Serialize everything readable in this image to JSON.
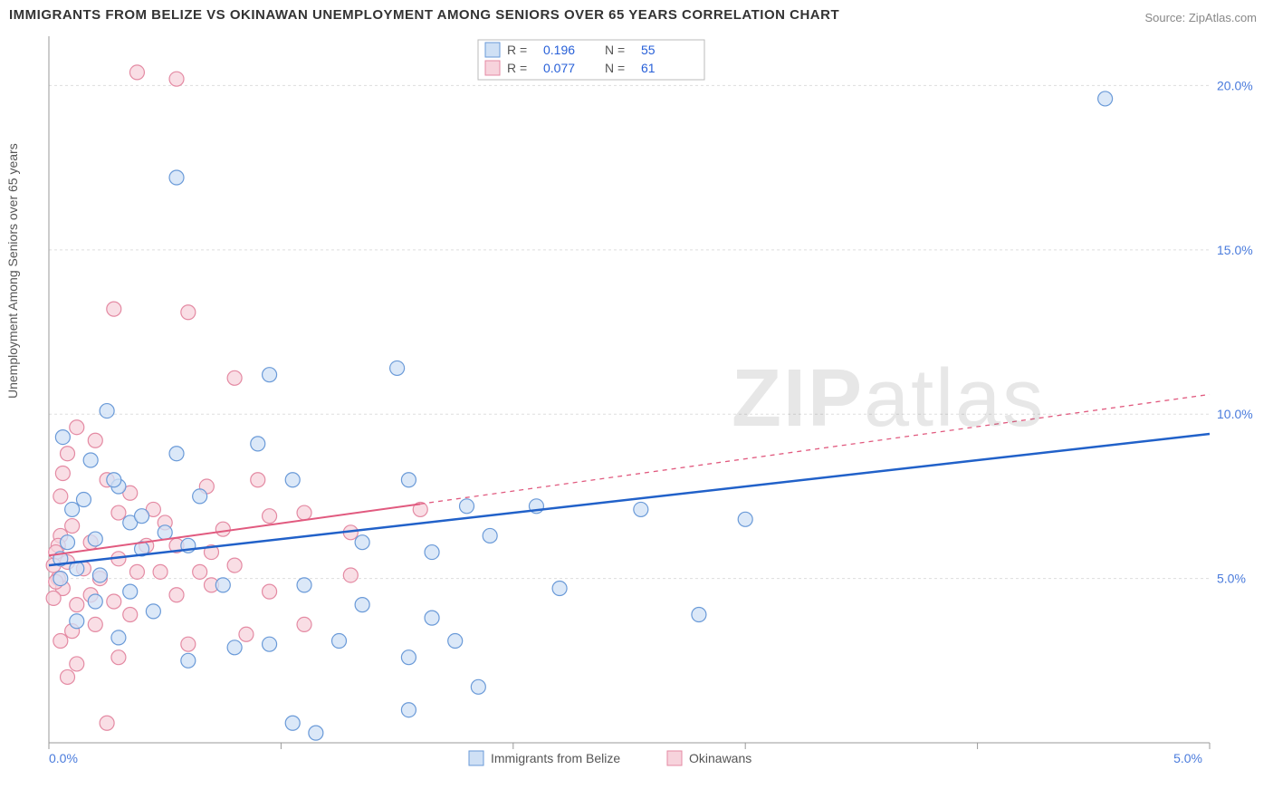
{
  "title": "IMMIGRANTS FROM BELIZE VS OKINAWAN UNEMPLOYMENT AMONG SENIORS OVER 65 YEARS CORRELATION CHART",
  "source": "Source: ZipAtlas.com",
  "ylabel": "Unemployment Among Seniors over 65 years",
  "watermark": {
    "bold": "ZIP",
    "rest": "atlas"
  },
  "chart": {
    "type": "scatter",
    "background_color": "#ffffff",
    "grid_color": "#dddddd",
    "axis_color": "#999999",
    "xlim": [
      0.0,
      5.0
    ],
    "ylim": [
      0.0,
      21.5
    ],
    "ytick_values": [
      5.0,
      10.0,
      15.0,
      20.0
    ],
    "ytick_labels": [
      "5.0%",
      "10.0%",
      "15.0%",
      "20.0%"
    ],
    "xtick_values": [
      0.0,
      1.0,
      2.0,
      3.0,
      4.0,
      5.0
    ],
    "x_origin_label": "0.0%",
    "x_end_label": "5.0%",
    "marker_radius": 8,
    "marker_stroke_width": 1.2,
    "series": [
      {
        "name": "Immigrants from Belize",
        "fill": "#cfe0f5",
        "stroke": "#6a9ad8",
        "line_color": "#2161c9",
        "line_width": 2.5,
        "line_dash": "none",
        "trend": {
          "x1": 0.0,
          "y1": 5.4,
          "x2": 5.0,
          "y2": 9.4
        },
        "trend_extent_x": 5.0,
        "R": "0.196",
        "N": "55",
        "points": [
          [
            0.55,
            17.2
          ],
          [
            4.55,
            19.6
          ],
          [
            0.3,
            7.8
          ],
          [
            0.15,
            7.4
          ],
          [
            0.1,
            7.1
          ],
          [
            0.35,
            6.7
          ],
          [
            0.5,
            6.4
          ],
          [
            0.2,
            6.2
          ],
          [
            0.08,
            6.1
          ],
          [
            0.4,
            5.9
          ],
          [
            0.6,
            6.0
          ],
          [
            0.05,
            5.6
          ],
          [
            0.25,
            10.1
          ],
          [
            0.95,
            11.2
          ],
          [
            0.9,
            9.1
          ],
          [
            1.5,
            11.4
          ],
          [
            1.05,
            8.0
          ],
          [
            1.55,
            8.0
          ],
          [
            1.8,
            7.2
          ],
          [
            2.1,
            7.2
          ],
          [
            2.55,
            7.1
          ],
          [
            3.0,
            6.8
          ],
          [
            0.75,
            4.8
          ],
          [
            1.1,
            4.8
          ],
          [
            1.35,
            4.2
          ],
          [
            1.65,
            3.8
          ],
          [
            1.25,
            3.1
          ],
          [
            0.95,
            3.0
          ],
          [
            0.8,
            2.9
          ],
          [
            0.6,
            2.5
          ],
          [
            1.55,
            2.6
          ],
          [
            1.75,
            3.1
          ],
          [
            1.85,
            1.7
          ],
          [
            1.55,
            1.0
          ],
          [
            1.05,
            0.6
          ],
          [
            1.15,
            0.3
          ],
          [
            0.35,
            4.6
          ],
          [
            0.2,
            4.3
          ],
          [
            0.45,
            4.0
          ],
          [
            0.12,
            3.7
          ],
          [
            0.3,
            3.2
          ],
          [
            2.2,
            4.7
          ],
          [
            1.65,
            5.8
          ],
          [
            1.35,
            6.1
          ],
          [
            1.9,
            6.3
          ],
          [
            2.8,
            3.9
          ],
          [
            0.05,
            5.0
          ],
          [
            0.12,
            5.3
          ],
          [
            0.22,
            5.1
          ],
          [
            0.06,
            9.3
          ],
          [
            0.18,
            8.6
          ],
          [
            0.28,
            8.0
          ],
          [
            0.65,
            7.5
          ],
          [
            0.55,
            8.8
          ],
          [
            0.4,
            6.9
          ]
        ]
      },
      {
        "name": "Okinawans",
        "fill": "#f7d3dc",
        "stroke": "#e48aa3",
        "line_color": "#e15a7f",
        "line_width": 2.0,
        "line_dash": "4 4",
        "trend": {
          "x1": 0.0,
          "y1": 5.7,
          "x2": 5.0,
          "y2": 10.6
        },
        "trend_extent_x": 1.6,
        "R": "0.077",
        "N": "61",
        "points": [
          [
            0.38,
            20.4
          ],
          [
            0.55,
            20.2
          ],
          [
            0.28,
            13.2
          ],
          [
            0.6,
            13.1
          ],
          [
            0.12,
            9.6
          ],
          [
            0.2,
            9.2
          ],
          [
            0.08,
            8.8
          ],
          [
            0.06,
            8.2
          ],
          [
            0.25,
            8.0
          ],
          [
            0.35,
            7.6
          ],
          [
            0.3,
            7.0
          ],
          [
            0.45,
            7.1
          ],
          [
            0.5,
            6.7
          ],
          [
            0.1,
            6.6
          ],
          [
            0.05,
            6.3
          ],
          [
            0.18,
            6.1
          ],
          [
            0.42,
            6.0
          ],
          [
            0.55,
            6.0
          ],
          [
            0.3,
            5.6
          ],
          [
            0.08,
            5.5
          ],
          [
            0.15,
            5.3
          ],
          [
            0.22,
            5.0
          ],
          [
            0.04,
            5.0
          ],
          [
            0.06,
            4.7
          ],
          [
            0.18,
            4.5
          ],
          [
            0.12,
            4.2
          ],
          [
            0.28,
            4.3
          ],
          [
            0.35,
            3.9
          ],
          [
            0.2,
            3.6
          ],
          [
            0.1,
            3.4
          ],
          [
            0.05,
            3.1
          ],
          [
            0.3,
            2.6
          ],
          [
            0.12,
            2.4
          ],
          [
            0.08,
            2.0
          ],
          [
            0.25,
            0.6
          ],
          [
            0.7,
            5.8
          ],
          [
            0.75,
            6.5
          ],
          [
            0.8,
            5.4
          ],
          [
            0.7,
            4.8
          ],
          [
            0.95,
            6.9
          ],
          [
            0.95,
            4.6
          ],
          [
            0.85,
            3.3
          ],
          [
            1.1,
            7.0
          ],
          [
            1.1,
            3.6
          ],
          [
            1.3,
            6.4
          ],
          [
            1.3,
            5.1
          ],
          [
            1.6,
            7.1
          ],
          [
            0.6,
            3.0
          ],
          [
            0.48,
            5.2
          ],
          [
            0.55,
            4.5
          ],
          [
            0.38,
            5.2
          ],
          [
            0.05,
            7.5
          ],
          [
            0.04,
            6.0
          ],
          [
            0.03,
            5.8
          ],
          [
            0.02,
            5.4
          ],
          [
            0.03,
            4.9
          ],
          [
            0.02,
            4.4
          ],
          [
            0.68,
            7.8
          ],
          [
            0.9,
            8.0
          ],
          [
            0.8,
            11.1
          ],
          [
            0.65,
            5.2
          ]
        ]
      }
    ],
    "legend_bottom": [
      {
        "label": "Immigrants from Belize",
        "fill": "#cfe0f5",
        "stroke": "#6a9ad8"
      },
      {
        "label": "Okinawans",
        "fill": "#f7d3dc",
        "stroke": "#e48aa3"
      }
    ]
  }
}
